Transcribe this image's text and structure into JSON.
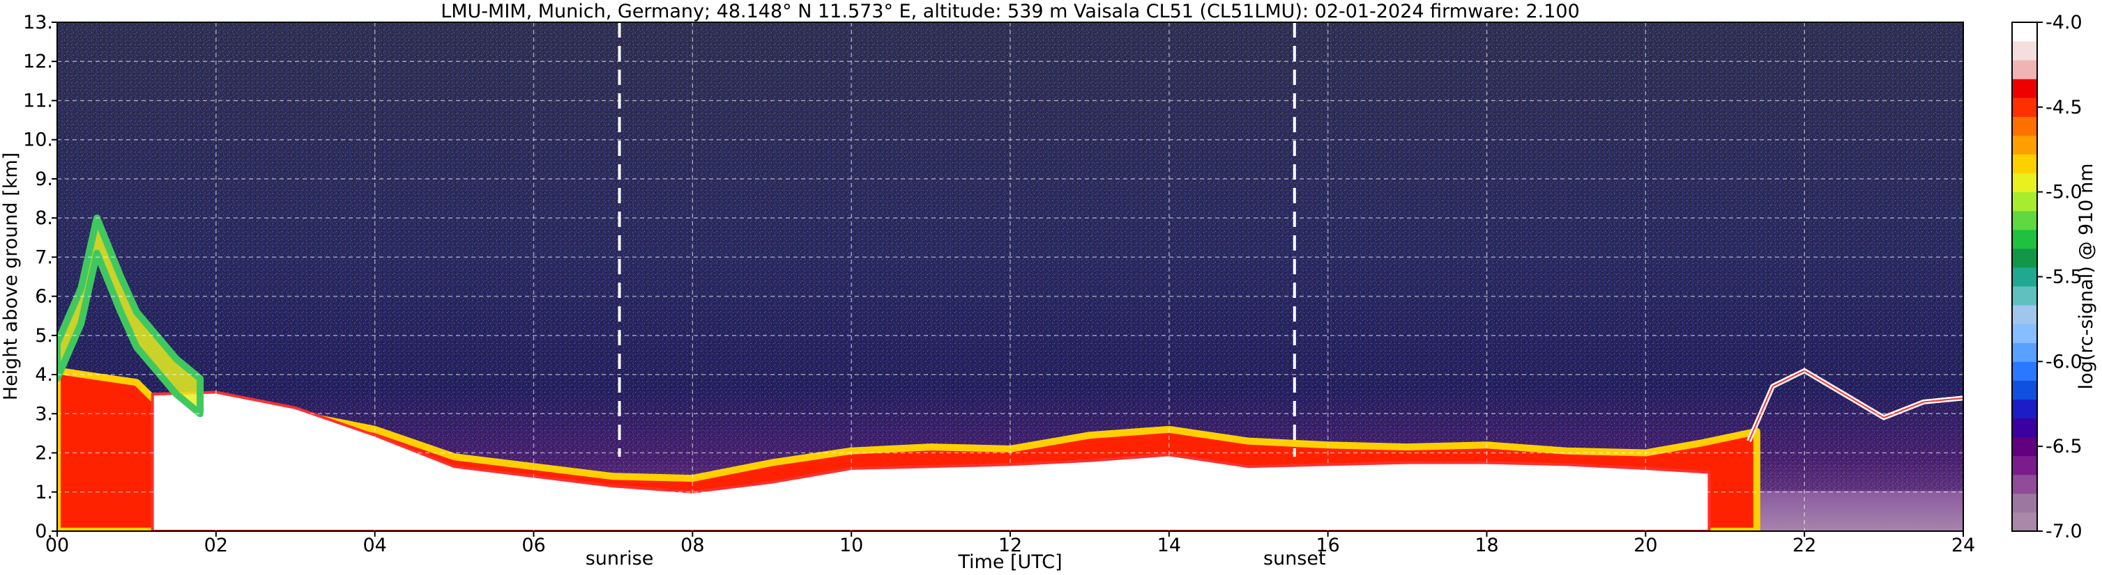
{
  "chart_data": {
    "type": "heatmap",
    "title": "LMU-MIM, Munich, Germany; 48.148° N 11.573° E, altitude: 539 m    Vaisala CL51 (CL51LMU): 02-01-2024    firmware: 2.100",
    "xlabel": "Time [UTC]",
    "ylabel": "Height above ground [km]",
    "xlim": [
      0,
      24
    ],
    "ylim": [
      0,
      13
    ],
    "x_ticks": [
      "00",
      "02",
      "04",
      "06",
      "08",
      "10",
      "12",
      "14",
      "16",
      "18",
      "20",
      "22",
      "24"
    ],
    "y_ticks": [
      "0.",
      "1.",
      "2.",
      "3.",
      "4.",
      "5.",
      "6.",
      "7.",
      "8.",
      "9.",
      "10.",
      "11.",
      "12.",
      "13."
    ],
    "grid": true,
    "colorbar": {
      "label": "log(rc-signal) @ 910 nm",
      "range": [
        -7.0,
        -4.0
      ],
      "ticks": [
        "-4.0",
        "-4.5",
        "-5.0",
        "-5.5",
        "-6.0",
        "-6.5",
        "-7.0"
      ],
      "colors": [
        "#a88aa8",
        "#9c78a0",
        "#904c98",
        "#7a1c8c",
        "#600080",
        "#3a00a0",
        "#1d1dc8",
        "#1050e0",
        "#2a78ff",
        "#5aa0ff",
        "#86beff",
        "#a0c6ee",
        "#60c0c0",
        "#20a890",
        "#109848",
        "#20c040",
        "#60d840",
        "#a8ec30",
        "#e8f020",
        "#ffd000",
        "#ffa000",
        "#ff7000",
        "#ff3000",
        "#ee0000",
        "#f0b4b4",
        "#f4dede",
        "#ffffff"
      ]
    },
    "annotations": [
      {
        "label": "sunrise",
        "x": 7.08
      },
      {
        "label": "sunset",
        "x": 15.58
      }
    ],
    "layers": {
      "boundary_layer_top_km": [
        [
          0.0,
          4.1
        ],
        [
          0.5,
          3.95
        ],
        [
          1.0,
          3.8
        ],
        [
          1.3,
          3.2
        ],
        [
          2.0,
          3.2
        ],
        [
          3.0,
          3.0
        ],
        [
          4.0,
          2.6
        ],
        [
          5.0,
          1.9
        ],
        [
          6.0,
          1.65
        ],
        [
          7.0,
          1.4
        ],
        [
          8.0,
          1.35
        ],
        [
          9.0,
          1.75
        ],
        [
          10.0,
          2.05
        ],
        [
          11.0,
          2.15
        ],
        [
          12.0,
          2.1
        ],
        [
          13.0,
          2.45
        ],
        [
          14.0,
          2.6
        ],
        [
          15.0,
          2.3
        ],
        [
          16.0,
          2.2
        ],
        [
          17.0,
          2.15
        ],
        [
          18.0,
          2.2
        ],
        [
          19.0,
          2.05
        ],
        [
          20.0,
          2.0
        ],
        [
          20.7,
          2.25
        ],
        [
          21.4,
          2.55
        ]
      ],
      "dense_layer_top_km": [
        [
          1.2,
          3.5
        ],
        [
          2.0,
          3.55
        ],
        [
          3.0,
          3.15
        ],
        [
          4.0,
          2.45
        ],
        [
          5.0,
          1.65
        ],
        [
          6.0,
          1.4
        ],
        [
          7.0,
          1.15
        ],
        [
          8.0,
          1.0
        ],
        [
          9.0,
          1.25
        ],
        [
          10.0,
          1.6
        ],
        [
          11.0,
          1.65
        ],
        [
          12.0,
          1.7
        ],
        [
          13.0,
          1.8
        ],
        [
          14.0,
          1.95
        ],
        [
          15.0,
          1.65
        ],
        [
          16.0,
          1.7
        ],
        [
          17.0,
          1.75
        ],
        [
          18.0,
          1.75
        ],
        [
          19.0,
          1.7
        ],
        [
          20.0,
          1.6
        ],
        [
          20.8,
          1.5
        ]
      ],
      "high_cloud_km": [
        [
          0.0,
          4.8
        ],
        [
          0.3,
          6.2
        ],
        [
          0.5,
          8.0
        ],
        [
          0.8,
          6.5
        ],
        [
          1.0,
          5.6
        ],
        [
          1.5,
          4.4
        ],
        [
          1.8,
          3.9
        ]
      ],
      "upper_cloud_km": [
        [
          21.3,
          2.3
        ],
        [
          21.6,
          3.7
        ],
        [
          22.0,
          4.1
        ],
        [
          22.5,
          3.5
        ],
        [
          23.0,
          2.9
        ],
        [
          23.5,
          3.3
        ],
        [
          24.0,
          3.4
        ]
      ]
    }
  }
}
